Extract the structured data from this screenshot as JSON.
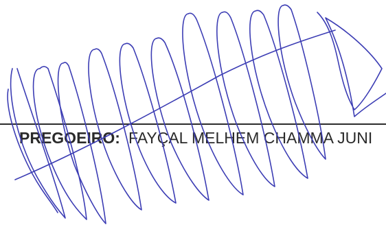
{
  "signatory": {
    "role_label": "PREGOEIRO:",
    "name": "FAYÇAL MELHEM CHAMMA JUNI"
  },
  "colors": {
    "ink": "#3c3db4",
    "print": "#2a2a2a",
    "line": "#2b2b2b"
  }
}
